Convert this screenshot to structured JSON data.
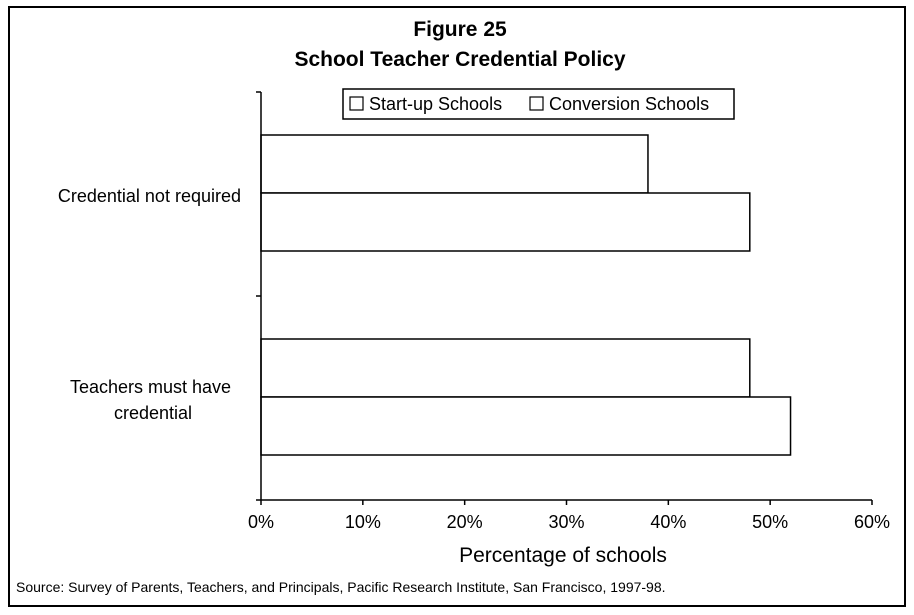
{
  "chart_data": {
    "type": "bar",
    "orientation": "horizontal",
    "title": "Figure 25",
    "subtitle": "School Teacher Credential Policy",
    "categories": [
      "Credential not required",
      "Teachers must have credential"
    ],
    "series": [
      {
        "name": "Start-up Schools",
        "values": [
          38,
          48
        ],
        "color": "#ffffff"
      },
      {
        "name": "Conversion Schools",
        "values": [
          48,
          52
        ],
        "color": "#ffffff"
      }
    ],
    "xlabel": "Percentage of schools",
    "ylabel": "",
    "xlim": [
      0,
      60
    ],
    "xticks": [
      "0%",
      "10%",
      "20%",
      "30%",
      "40%",
      "50%",
      "60%"
    ],
    "grid": false,
    "legend_position": "top-right",
    "source": "Source: Survey of Parents, Teachers, and Principals, Pacific Research Institute, San Francisco, 1997-98."
  }
}
